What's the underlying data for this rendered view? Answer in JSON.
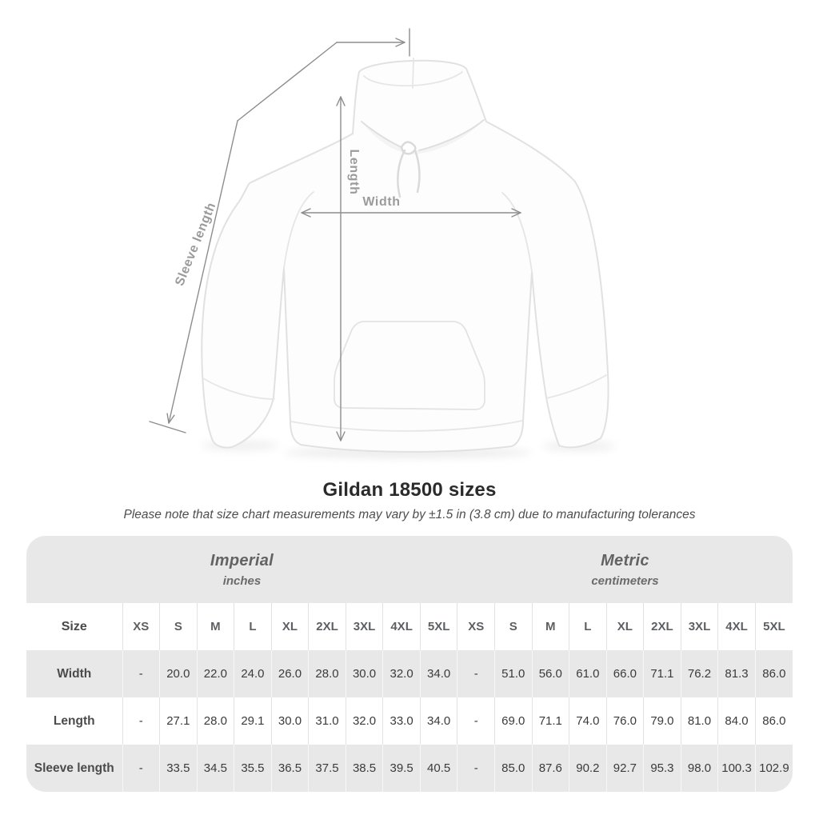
{
  "diagram": {
    "width_label": "Width",
    "length_label": "Length",
    "sleeve_label": "Sleeve length",
    "line_color": "#8d8d8d",
    "label_color": "#9b9b9b"
  },
  "colors": {
    "band_gray": "#e8e8e8",
    "row_shade_gray": "#e8e8e8",
    "separator_on_white": "#e2e2e2",
    "separator_on_gray": "#f7f7f7",
    "value_text": "#3b3b3b",
    "header_text": "#5c5f63",
    "title_text": "#2b2b2b"
  },
  "chart_data": {
    "type": "table",
    "title": "Gildan 18500 sizes",
    "subtitle": "Please note that size chart measurements may vary by ±1.5 in (3.8 cm) due to manufacturing tolerances",
    "corner_label": "Size",
    "sizes": [
      "XS",
      "S",
      "M",
      "L",
      "XL",
      "2XL",
      "3XL",
      "4XL",
      "5XL"
    ],
    "groups": [
      {
        "label": "Imperial",
        "unit": "inches"
      },
      {
        "label": "Metric",
        "unit": "centimeters"
      }
    ],
    "rows": [
      {
        "label": "Width",
        "imperial": [
          "-",
          "20.0",
          "22.0",
          "24.0",
          "26.0",
          "28.0",
          "30.0",
          "32.0",
          "34.0"
        ],
        "metric": [
          "-",
          "51.0",
          "56.0",
          "61.0",
          "66.0",
          "71.1",
          "76.2",
          "81.3",
          "86.0"
        ]
      },
      {
        "label": "Length",
        "imperial": [
          "-",
          "27.1",
          "28.0",
          "29.1",
          "30.0",
          "31.0",
          "32.0",
          "33.0",
          "34.0"
        ],
        "metric": [
          "-",
          "69.0",
          "71.1",
          "74.0",
          "76.0",
          "79.0",
          "81.0",
          "84.0",
          "86.0"
        ]
      },
      {
        "label": "Sleeve length",
        "imperial": [
          "-",
          "33.5",
          "34.5",
          "35.5",
          "36.5",
          "37.5",
          "38.5",
          "39.5",
          "40.5"
        ],
        "metric": [
          "-",
          "85.0",
          "87.6",
          "90.2",
          "92.7",
          "95.3",
          "98.0",
          "100.3",
          "102.9"
        ]
      }
    ]
  }
}
